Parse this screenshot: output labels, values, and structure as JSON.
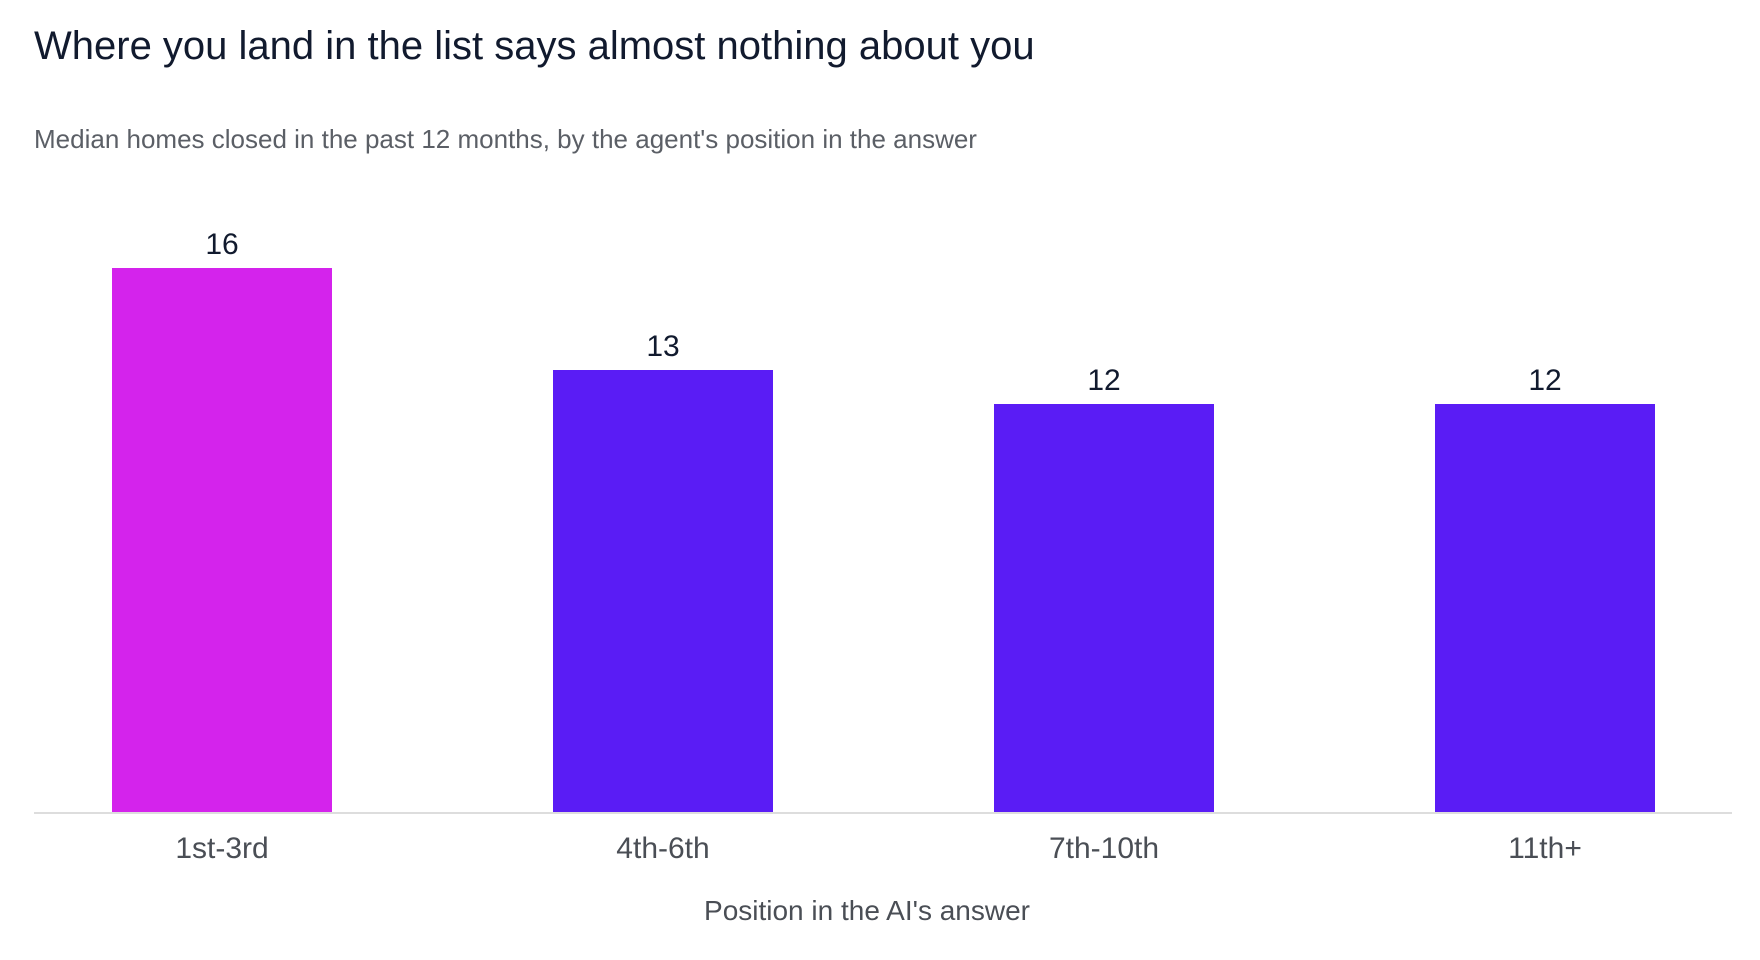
{
  "chart_data": {
    "type": "bar",
    "title": "Where you land in the list says almost nothing about you",
    "subtitle": "Median homes closed in the past 12 months, by the agent's position in the answer",
    "xlabel": "Position in the AI's answer",
    "ylabel": "",
    "categories": [
      "1st-3rd",
      "4th-6th",
      "7th-10th",
      "11th+"
    ],
    "values": [
      16,
      13,
      12,
      12
    ],
    "data_labels": [
      "16",
      "13",
      "12",
      "12"
    ],
    "ylim": [
      0,
      16
    ],
    "grid": false,
    "legend": "none",
    "colors": [
      "#d423ec",
      "#5a1cf5",
      "#5a1cf5",
      "#5a1cf5"
    ],
    "baseline_color": "#dddddd"
  }
}
